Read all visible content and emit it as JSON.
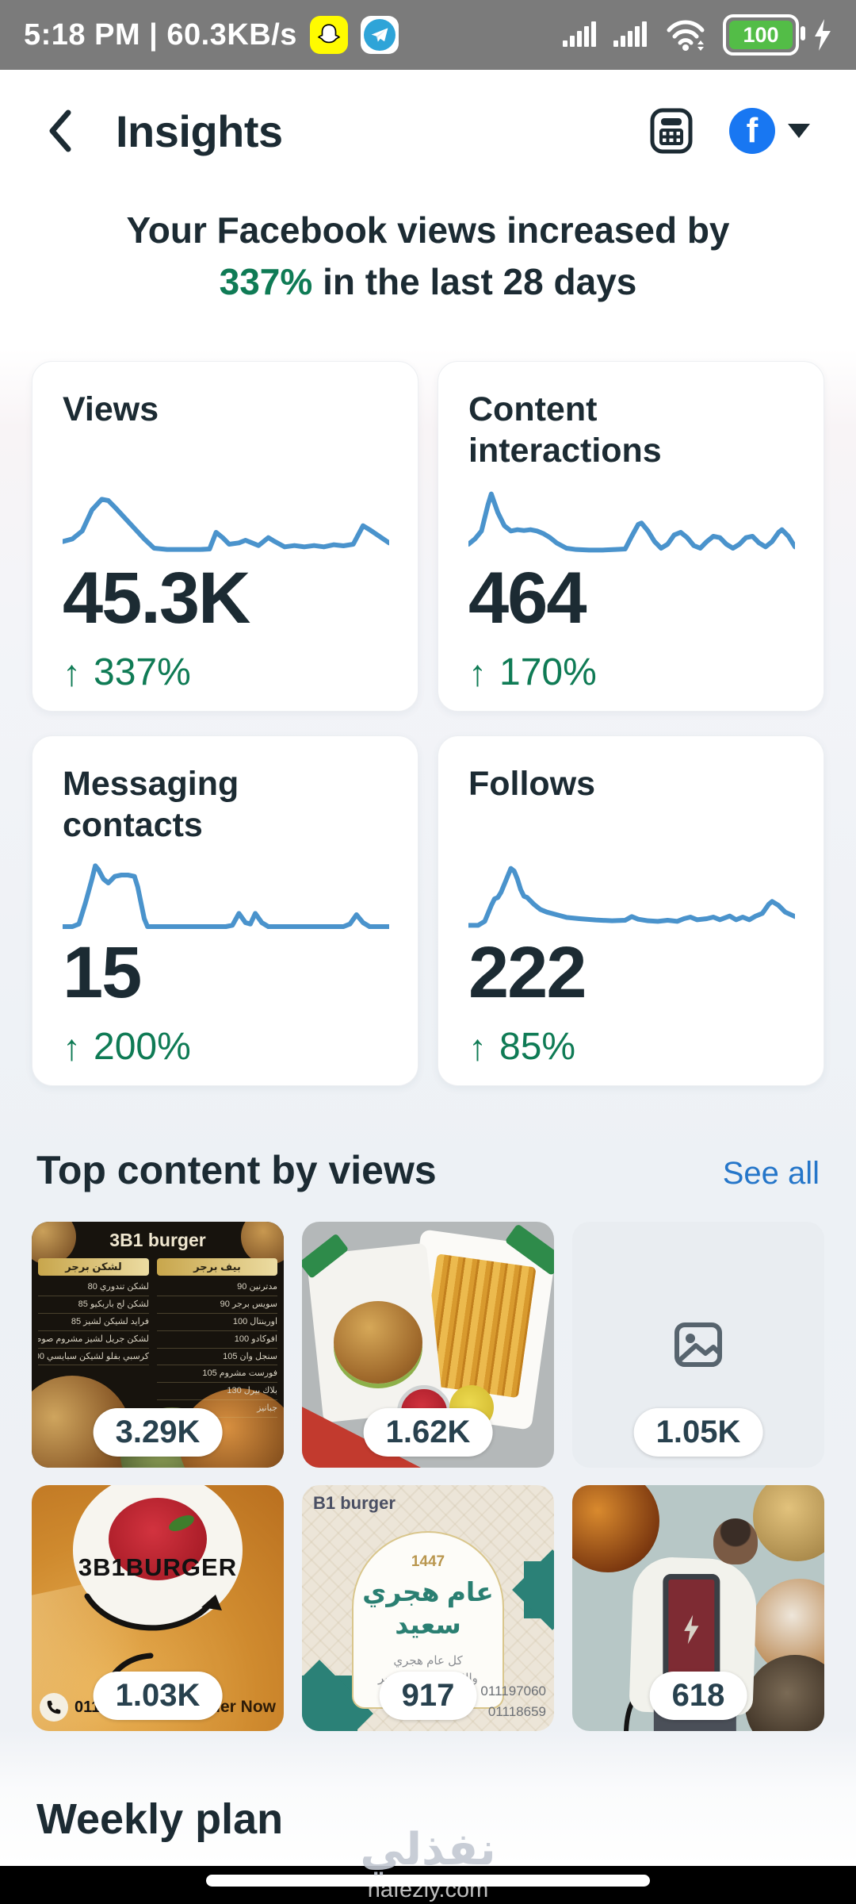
{
  "colors": {
    "accent_blue": "#4a93cc",
    "green": "#0f7b55",
    "dark_text": "#1c2b33",
    "link_blue": "#2576c9",
    "facebook_blue": "#1877f2",
    "status_bar_bg": "#7b7b7b",
    "section_bg": "#eef1f5",
    "badge_bg": "#ffffff"
  },
  "status_bar": {
    "left_text": "5:18 PM | 60.3KB/s",
    "battery_level": "100",
    "icons": [
      "snapchat-icon",
      "telegram-icon",
      "cell-signal-icon",
      "cell-signal-icon",
      "wifi-icon",
      "battery-icon",
      "charging-bolt-icon"
    ]
  },
  "header": {
    "title": "Insights",
    "facebook_letter": "f",
    "icons": [
      "back-chevron-icon",
      "content-planner-icon",
      "facebook-logo-icon",
      "dropdown-caret-icon"
    ]
  },
  "headline": {
    "line1": "Your Facebook views increased by",
    "highlight": "337%",
    "line2_rest": " in the last 28 days"
  },
  "up_arrow_glyph": "↑",
  "metric_cards": [
    {
      "title": "Views",
      "value": "45.3K",
      "change": "337%",
      "trend": [
        [
          0,
          23
        ],
        [
          3,
          22
        ],
        [
          6,
          19
        ],
        [
          9,
          11
        ],
        [
          12,
          7
        ],
        [
          14,
          7.5
        ],
        [
          16,
          10
        ],
        [
          19,
          14
        ],
        [
          22,
          18
        ],
        [
          25,
          22
        ],
        [
          28,
          25.5
        ],
        [
          32,
          26
        ],
        [
          37,
          26
        ],
        [
          42,
          26
        ],
        [
          45,
          25.8
        ],
        [
          47,
          19.5
        ],
        [
          49,
          21.5
        ],
        [
          51,
          24
        ],
        [
          54,
          23.5
        ],
        [
          56,
          22.5
        ],
        [
          58,
          23.5
        ],
        [
          60,
          24.5
        ],
        [
          63,
          21.5
        ],
        [
          65,
          23
        ],
        [
          68,
          25
        ],
        [
          71,
          24.5
        ],
        [
          74,
          25
        ],
        [
          77,
          24.5
        ],
        [
          80,
          25
        ],
        [
          83,
          24.2
        ],
        [
          86,
          24.6
        ],
        [
          89,
          24
        ],
        [
          92,
          17
        ],
        [
          94,
          18.5
        ],
        [
          97,
          21
        ],
        [
          100,
          23.5
        ]
      ]
    },
    {
      "title": "Content interactions",
      "value": "464",
      "change": "170%",
      "trend": [
        [
          0,
          24
        ],
        [
          2,
          22
        ],
        [
          4,
          19
        ],
        [
          6,
          9
        ],
        [
          7,
          5
        ],
        [
          9,
          12
        ],
        [
          11,
          17
        ],
        [
          13,
          19
        ],
        [
          15,
          18.5
        ],
        [
          17,
          18.8
        ],
        [
          19,
          18.5
        ],
        [
          21,
          19
        ],
        [
          23,
          20
        ],
        [
          25,
          21.5
        ],
        [
          27,
          23.5
        ],
        [
          30,
          25.5
        ],
        [
          33,
          26
        ],
        [
          37,
          26.2
        ],
        [
          41,
          26.2
        ],
        [
          45,
          26
        ],
        [
          48,
          25.8
        ],
        [
          50,
          21
        ],
        [
          52,
          16.5
        ],
        [
          53,
          16
        ],
        [
          55,
          19
        ],
        [
          57,
          23
        ],
        [
          59,
          25.5
        ],
        [
          61,
          24
        ],
        [
          63,
          20.5
        ],
        [
          65,
          19.5
        ],
        [
          67,
          21.5
        ],
        [
          69,
          24.5
        ],
        [
          71,
          25.5
        ],
        [
          73,
          23
        ],
        [
          75,
          21
        ],
        [
          77,
          21.5
        ],
        [
          79,
          24
        ],
        [
          81,
          25.5
        ],
        [
          83,
          24
        ],
        [
          85,
          21.5
        ],
        [
          87,
          21
        ],
        [
          89,
          23.5
        ],
        [
          91,
          25
        ],
        [
          93,
          23
        ],
        [
          95,
          19.5
        ],
        [
          96,
          18.5
        ],
        [
          98,
          21
        ],
        [
          100,
          25
        ]
      ]
    },
    {
      "title": "Messaging contacts",
      "value": "15",
      "change": "200%",
      "trend": [
        [
          0,
          27
        ],
        [
          3,
          27
        ],
        [
          5,
          26
        ],
        [
          7,
          18
        ],
        [
          9,
          9
        ],
        [
          10,
          4
        ],
        [
          11,
          5.5
        ],
        [
          12.5,
          9
        ],
        [
          14,
          10.5
        ],
        [
          16,
          8
        ],
        [
          18,
          7.5
        ],
        [
          20,
          7.5
        ],
        [
          22,
          8
        ],
        [
          23,
          12
        ],
        [
          24,
          18
        ],
        [
          25,
          24
        ],
        [
          26,
          27
        ],
        [
          32,
          27
        ],
        [
          38,
          27
        ],
        [
          44,
          27
        ],
        [
          50,
          27
        ],
        [
          52,
          26.5
        ],
        [
          54,
          22
        ],
        [
          56,
          25.5
        ],
        [
          57.5,
          26
        ],
        [
          59,
          22
        ],
        [
          61,
          25.5
        ],
        [
          63,
          27
        ],
        [
          70,
          27
        ],
        [
          76,
          27
        ],
        [
          82,
          27
        ],
        [
          86,
          27
        ],
        [
          88,
          26
        ],
        [
          90,
          22.5
        ],
        [
          92,
          25.5
        ],
        [
          94,
          27
        ],
        [
          100,
          27
        ]
      ]
    },
    {
      "title": "Follows",
      "value": "222",
      "change": "85%",
      "trend": [
        [
          0,
          26.5
        ],
        [
          3,
          26.5
        ],
        [
          5,
          25
        ],
        [
          7,
          19
        ],
        [
          8,
          16.5
        ],
        [
          9,
          16
        ],
        [
          10,
          14
        ],
        [
          12,
          8
        ],
        [
          13,
          5
        ],
        [
          14,
          6
        ],
        [
          15,
          9
        ],
        [
          16,
          13
        ],
        [
          17,
          15.5
        ],
        [
          18,
          16
        ],
        [
          20,
          18.5
        ],
        [
          22,
          20.5
        ],
        [
          24,
          21.5
        ],
        [
          27,
          22.5
        ],
        [
          30,
          23.5
        ],
        [
          34,
          24
        ],
        [
          39,
          24.5
        ],
        [
          44,
          24.8
        ],
        [
          48,
          24.6
        ],
        [
          50,
          23.2
        ],
        [
          52,
          24.2
        ],
        [
          55,
          24.8
        ],
        [
          58,
          25
        ],
        [
          61,
          24.6
        ],
        [
          64,
          25
        ],
        [
          66,
          24
        ],
        [
          68,
          23.4
        ],
        [
          70,
          24.4
        ],
        [
          73,
          24
        ],
        [
          75,
          23.4
        ],
        [
          77,
          24.4
        ],
        [
          80,
          23
        ],
        [
          82,
          24.4
        ],
        [
          84,
          23.4
        ],
        [
          86,
          24.4
        ],
        [
          88,
          23
        ],
        [
          90,
          22
        ],
        [
          92,
          18.5
        ],
        [
          93,
          17.5
        ],
        [
          95,
          19
        ],
        [
          97,
          21.5
        ],
        [
          100,
          23.2
        ]
      ]
    }
  ],
  "chart_data": [
    {
      "type": "line",
      "title": "Views",
      "current_value": "45.3K",
      "change": "+337%",
      "period": "last 28 days"
    },
    {
      "type": "line",
      "title": "Content interactions",
      "current_value": "464",
      "change": "+170%",
      "period": "last 28 days"
    },
    {
      "type": "line",
      "title": "Messaging contacts",
      "current_value": "15",
      "change": "+200%",
      "period": "last 28 days"
    },
    {
      "type": "line",
      "title": "Follows",
      "current_value": "222",
      "change": "+85%",
      "period": "last 28 days"
    }
  ],
  "top_content": {
    "title": "Top content by views",
    "see_all": "See all",
    "items": [
      {
        "views": "3.29K",
        "caption": "3B1 burger",
        "menu_header_left": "لشكن برجر",
        "menu_header_right": "بيف برجر",
        "menu_left": [
          "لشكن تندوري  80",
          "لشكن لح باربكيو  85",
          "فرايد لشيكن لشيز  85",
          "لشكن جريل لشيز مشروم صوص  90",
          "كرسبي بفلو لشيكن سبايسي  100"
        ],
        "menu_right": [
          "مدترنين  90",
          "سويس برجر  90",
          "اورينتال  100",
          "افوكادو  100",
          "سنجل وان  105",
          "فورست مشروم  105",
          "بلاك بيرل  130",
          "جبانيز"
        ]
      },
      {
        "views": "1.62K"
      },
      {
        "views": "1.05K"
      },
      {
        "views": "1.03K",
        "brand": "3B1BURGER",
        "phone": "01119706009",
        "cta": "Order Now"
      },
      {
        "views": "917",
        "brand": "B1 burger",
        "year": "1447",
        "greeting": "عام هجري سعيد",
        "subtitle1": "كل عام هجري",
        "subtitle2": "والامة الاسلامية بخير",
        "phones": [
          "011197060",
          "01118659"
        ]
      },
      {
        "views": "618"
      }
    ]
  },
  "weekly_plan": {
    "title": "Weekly plan"
  },
  "watermark": {
    "arabic": "نفذلي",
    "domain": "nafezly.com"
  }
}
